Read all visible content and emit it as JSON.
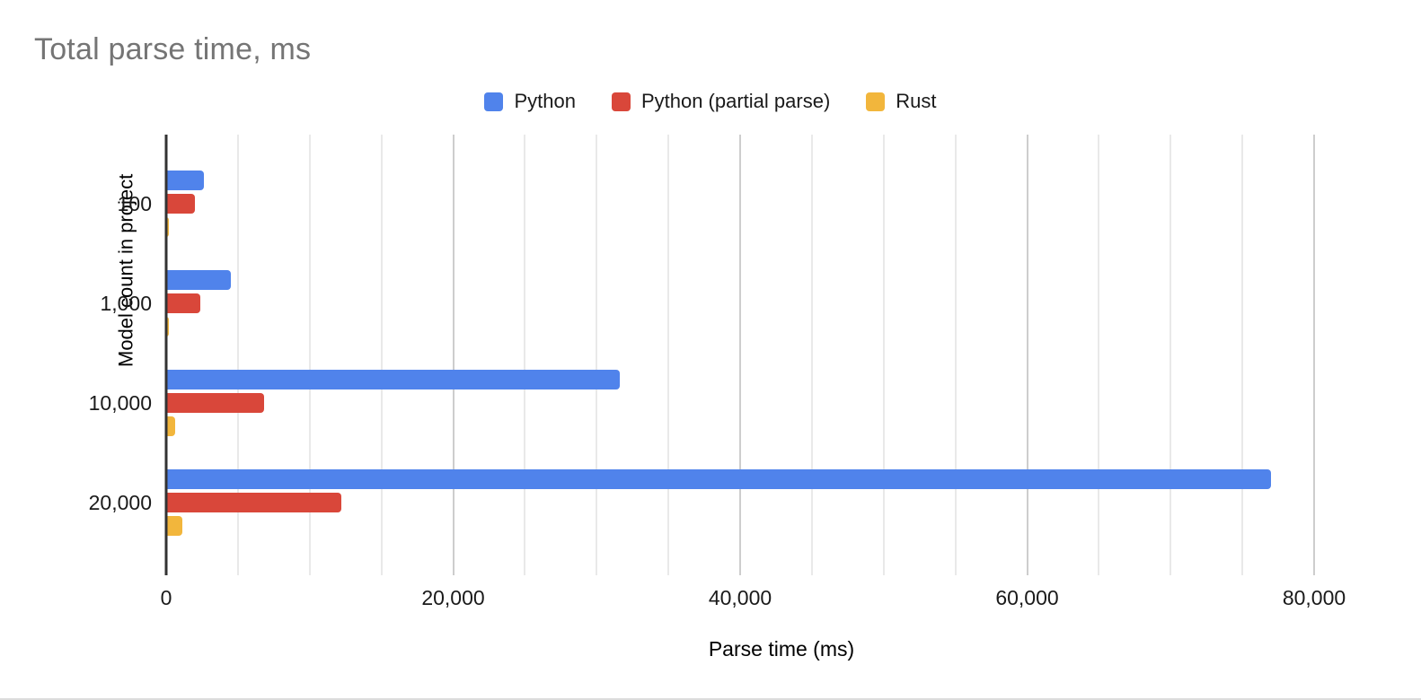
{
  "title": "Total parse time, ms",
  "chart_data": {
    "type": "bar",
    "orientation": "horizontal",
    "title": "Total parse time, ms",
    "xlabel": "Parse time (ms)",
    "ylabel": "Model count in project",
    "categories": [
      "100",
      "1,000",
      "10,000",
      "20,000"
    ],
    "series": [
      {
        "name": "Python",
        "color": "#5083EB",
        "values": [
          2600,
          4500,
          31600,
          77000
        ]
      },
      {
        "name": "Python (partial parse)",
        "color": "#D9473A",
        "values": [
          2000,
          2400,
          6800,
          12200
        ]
      },
      {
        "name": "Rust",
        "color": "#F2B63C",
        "values": [
          150,
          200,
          600,
          1100
        ]
      }
    ],
    "xlim": [
      0,
      80000
    ],
    "x_major_ticks": [
      0,
      20000,
      40000,
      60000,
      80000
    ],
    "x_tick_labels": [
      "0",
      "20,000",
      "40,000",
      "60,000",
      "80,000"
    ],
    "x_minor_step": 5000,
    "grid": true,
    "legend_position": "top",
    "colors": {
      "title_text": "#757575",
      "axis_line": "#333333",
      "gridline_minor": "#e9e9e9",
      "gridline_major": "#cdcdcd",
      "label_text": "#1a1a1a"
    }
  }
}
